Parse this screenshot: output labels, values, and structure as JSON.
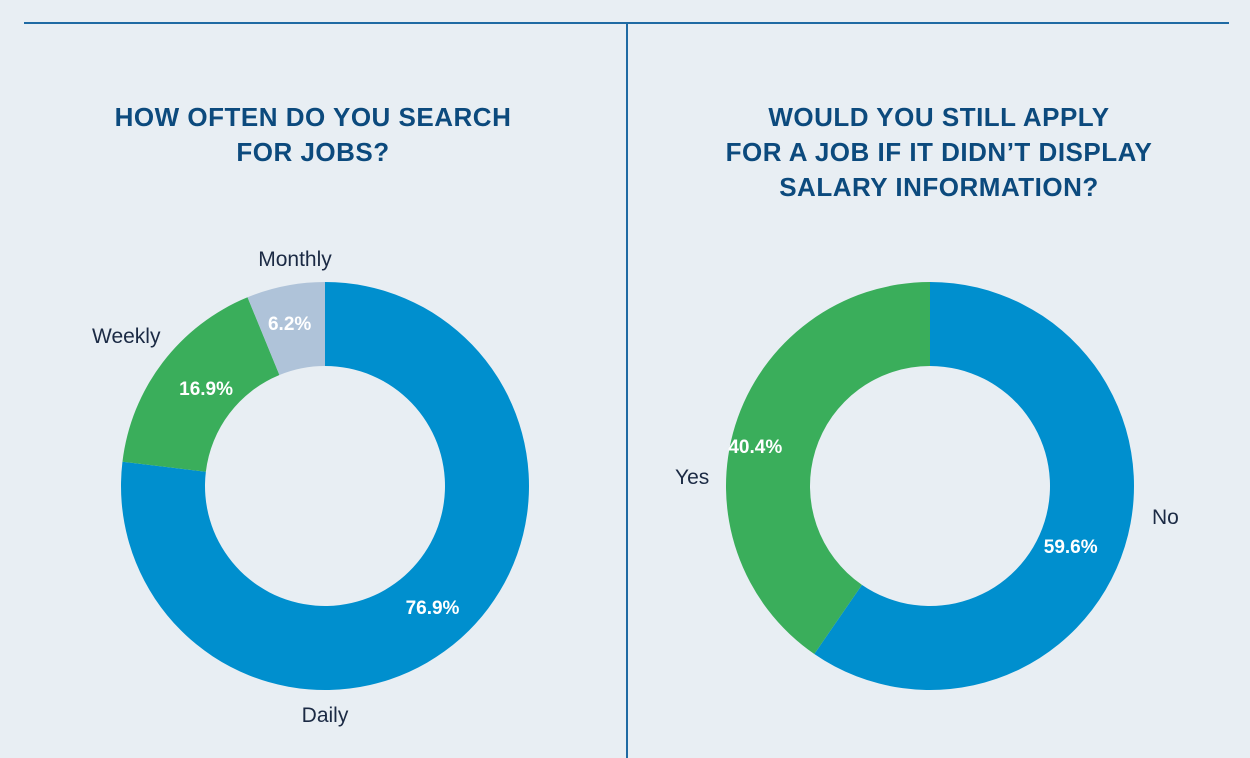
{
  "charts": [
    {
      "title_lines": [
        "HOW OFTEN DO YOU SEARCH",
        "FOR JOBS?"
      ],
      "chart_data": {
        "type": "pie",
        "title": "HOW OFTEN DO YOU SEARCH FOR JOBS?",
        "donut": true,
        "slices": [
          {
            "category": "Daily",
            "value": 76.9,
            "label": "76.9%",
            "color": "#008fce"
          },
          {
            "category": "Weekly",
            "value": 16.9,
            "label": "16.9%",
            "color": "#3aae5b"
          },
          {
            "category": "Monthly",
            "value": 6.2,
            "label": "6.2%",
            "color": "#afc3d9"
          }
        ]
      }
    },
    {
      "title_lines": [
        "WOULD YOU STILL APPLY",
        "FOR A JOB IF IT DIDN’T DISPLAY",
        "SALARY INFORMATION?"
      ],
      "chart_data": {
        "type": "pie",
        "title": "WOULD YOU STILL APPLY FOR A JOB IF IT DIDN’T DISPLAY SALARY INFORMATION?",
        "donut": true,
        "slices": [
          {
            "category": "No",
            "value": 59.6,
            "label": "59.6%",
            "color": "#008fce"
          },
          {
            "category": "Yes",
            "value": 40.4,
            "label": "40.4%",
            "color": "#3aae5b"
          }
        ]
      }
    }
  ]
}
